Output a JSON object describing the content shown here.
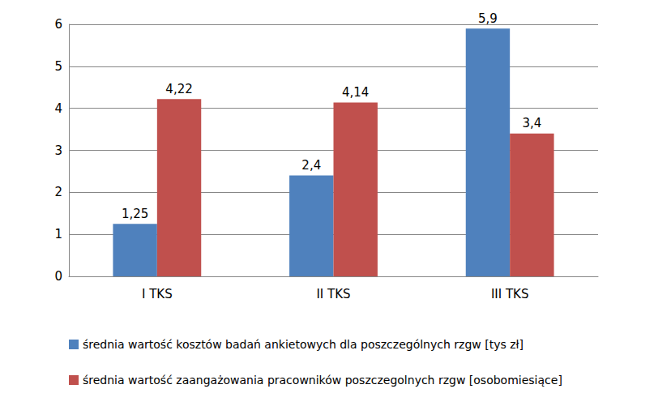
{
  "chart_data": {
    "type": "bar",
    "categories": [
      "I TKS",
      "II TKS",
      "III TKS"
    ],
    "series": [
      {
        "name": "średnia wartość kosztów badań ankietowych dla poszczególnych rzgw [tys zł]",
        "color": "#4f81bd",
        "values": [
          1.25,
          2.4,
          5.9
        ],
        "value_labels": [
          "1,25",
          "2,4",
          "5,9"
        ]
      },
      {
        "name": "średnia wartość zaangażowania pracowników poszczegolnych rzgw [osobomiesiące]",
        "color": "#c0504d",
        "values": [
          4.22,
          4.14,
          3.4
        ],
        "value_labels": [
          "4,22",
          "4,14",
          "3,4"
        ]
      }
    ],
    "ylim": [
      0,
      6
    ],
    "yticks": [
      0,
      1,
      2,
      3,
      4,
      5,
      6
    ],
    "grid": true,
    "legend": "bottom",
    "data_labels": true
  }
}
